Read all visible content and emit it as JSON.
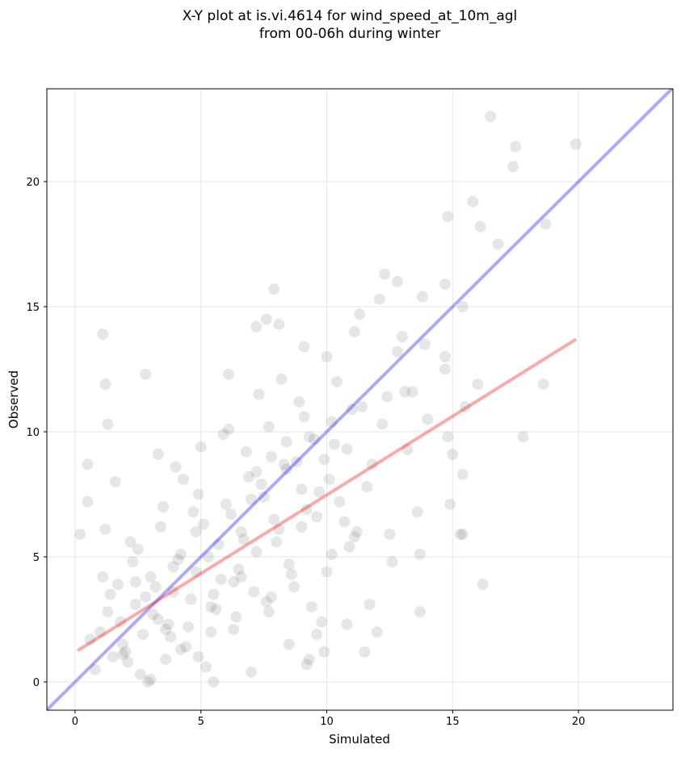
{
  "chart_data": {
    "type": "scatter",
    "title": "X-Y plot at is.vi.4614 for wind_speed_at_10m_agl",
    "subtitle": "from 00-06h during winter",
    "xlabel": "Simulated",
    "ylabel": "Observed",
    "xlim": [
      -1.12,
      23.75
    ],
    "ylim": [
      -1.13,
      23.71
    ],
    "xticks": [
      0,
      5,
      10,
      15,
      20
    ],
    "yticks": [
      0,
      5,
      10,
      15,
      20
    ],
    "grid": true,
    "color": "#555555",
    "x": [
      16.5,
      17.5,
      19.9,
      17.4,
      14.8,
      15.8,
      16.8,
      16.1,
      18.7,
      14.7,
      15.4,
      12.3,
      12.8,
      12.1,
      13.8,
      7.9,
      11.3,
      13.0,
      7.6,
      8.1,
      7.2,
      1.1,
      11.1,
      9.1,
      10.0,
      13.9,
      14.7,
      12.8,
      18.6,
      17.8,
      16.2,
      15.4,
      13.7,
      13.7,
      15.4,
      15.0,
      14.9,
      15.5,
      16.0,
      14.7,
      1.2,
      2.8,
      1.3,
      0.5,
      0.5,
      0.2,
      6.1,
      12.0,
      11.5,
      9.9,
      9.2,
      5.5,
      14.0,
      13.6,
      14.8,
      15.3,
      1.5,
      1.8,
      2.1,
      2.4,
      2.7,
      3.0,
      3.3,
      3.6,
      3.9,
      4.2,
      4.5,
      4.8,
      5.1,
      5.4,
      5.7,
      6.0,
      6.3,
      6.6,
      6.9,
      7.2,
      7.5,
      7.8,
      8.1,
      8.4,
      8.7,
      9.0,
      9.3,
      9.6,
      9.9,
      10.2,
      10.5,
      10.8,
      11.1,
      11.4,
      1.0,
      1.4,
      1.9,
      2.3,
      2.6,
      3.1,
      3.4,
      3.8,
      4.1,
      4.6,
      4.9,
      5.3,
      5.6,
      6.2,
      6.5,
      6.8,
      7.1,
      7.4,
      7.7,
      8.0,
      8.3,
      8.6,
      8.9,
      9.2,
      9.5,
      9.8,
      10.1,
      10.4,
      10.7,
      11.0,
      0.8,
      1.2,
      1.7,
      2.0,
      2.5,
      2.9,
      3.2,
      3.5,
      3.7,
      4.0,
      4.4,
      4.7,
      5.0,
      5.2,
      5.8,
      6.1,
      6.4,
      6.7,
      7.0,
      7.3,
      7.6,
      7.9,
      8.2,
      8.5,
      8.8,
      9.1,
      9.4,
      9.7,
      10.3,
      10.9,
      11.6,
      12.2,
      12.6,
      13.1,
      0.6,
      1.1,
      1.6,
      2.2,
      2.8,
      3.3,
      3.9,
      4.3,
      4.8,
      5.4,
      5.9,
      6.6,
      7.2,
      7.8,
      8.4,
      9.0,
      9.6,
      10.2,
      11.2,
      11.8,
      12.4,
      13.2,
      1.3,
      1.9,
      2.4,
      3.0,
      3.6,
      4.2,
      4.9,
      5.5,
      6.3,
      7.0,
      7.7,
      8.5,
      9.3,
      10.0,
      10.8,
      11.7,
      12.5,
      13.4
    ],
    "y": [
      22.6,
      21.4,
      21.5,
      20.6,
      18.6,
      19.2,
      17.5,
      18.2,
      18.3,
      15.9,
      15.0,
      16.3,
      16.0,
      15.3,
      15.4,
      15.7,
      14.7,
      13.8,
      14.5,
      14.3,
      14.2,
      13.9,
      14.0,
      13.4,
      13.0,
      13.5,
      13.0,
      13.2,
      11.9,
      9.8,
      3.9,
      5.9,
      2.8,
      5.1,
      8.3,
      9.1,
      7.1,
      11.0,
      11.9,
      12.5,
      11.9,
      12.3,
      10.3,
      8.7,
      7.2,
      5.9,
      12.3,
      2.0,
      1.2,
      1.2,
      0.7,
      0.0,
      10.5,
      6.8,
      9.8,
      5.9,
      1.0,
      2.4,
      0.8,
      3.1,
      1.9,
      4.2,
      2.5,
      0.9,
      3.6,
      5.1,
      2.2,
      4.4,
      6.3,
      3.0,
      5.5,
      7.1,
      4.0,
      6.0,
      8.2,
      5.2,
      7.4,
      9.0,
      6.1,
      8.5,
      3.8,
      7.7,
      9.8,
      6.6,
      8.9,
      10.4,
      7.2,
      9.3,
      5.8,
      11.0,
      2.0,
      3.5,
      1.5,
      4.8,
      0.3,
      2.7,
      6.2,
      1.8,
      4.9,
      3.3,
      7.5,
      5.0,
      2.9,
      6.7,
      4.5,
      9.2,
      3.6,
      7.9,
      10.2,
      5.6,
      8.7,
      4.3,
      11.2,
      6.9,
      9.7,
      2.4,
      8.1,
      12.0,
      6.4,
      10.9,
      0.5,
      6.1,
      3.9,
      1.2,
      5.3,
      0.0,
      3.8,
      7.0,
      2.3,
      8.6,
      1.4,
      6.8,
      9.4,
      0.6,
      4.1,
      10.1,
      2.6,
      5.7,
      7.3,
      11.5,
      3.2,
      6.5,
      12.1,
      4.7,
      8.8,
      10.6,
      3.0,
      7.6,
      9.5,
      5.4,
      7.8,
      10.3,
      4.8,
      11.6,
      1.7,
      4.2,
      8.0,
      5.6,
      3.4,
      9.1,
      4.6,
      8.1,
      6.0,
      2.0,
      9.9,
      4.2,
      8.4,
      3.4,
      9.6,
      6.2,
      1.9,
      5.1,
      6.0,
      8.7,
      11.4,
      9.3,
      2.8,
      1.1,
      4.0,
      0.1,
      2.1,
      1.3,
      1.0,
      3.5,
      2.1,
      0.4,
      2.8,
      1.5,
      0.9,
      4.4,
      2.3,
      3.1,
      5.9,
      11.6
    ],
    "lines": [
      {
        "color": "#0000ee",
        "x": [
          -1.12,
          23.75
        ],
        "y": [
          -1.12,
          23.75
        ]
      },
      {
        "color": "#ee0000",
        "x": [
          0.1,
          19.9
        ],
        "y": [
          1.25,
          13.7
        ]
      }
    ]
  }
}
